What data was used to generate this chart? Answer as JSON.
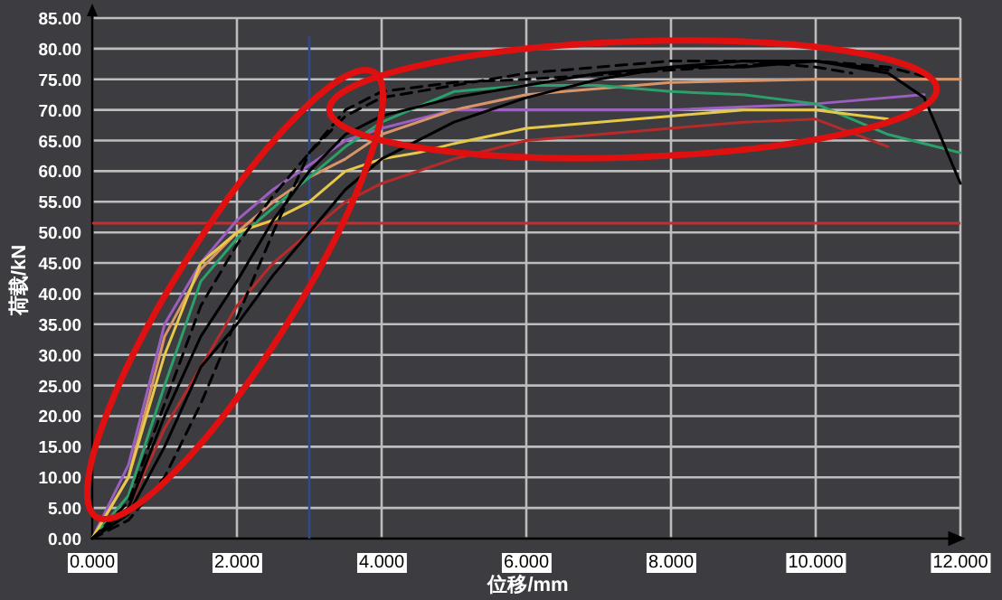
{
  "chart_data": {
    "type": "line",
    "xlabel": "位移/mm",
    "ylabel": "荷载/kN",
    "xlim": [
      0,
      12
    ],
    "ylim": [
      0,
      85
    ],
    "xticks": [
      {
        "value": 0,
        "label": "0.000"
      },
      {
        "value": 2,
        "label": "2.000"
      },
      {
        "value": 4,
        "label": "4.000"
      },
      {
        "value": 6,
        "label": "6.000"
      },
      {
        "value": 8,
        "label": "8.000"
      },
      {
        "value": 10,
        "label": "10.000"
      },
      {
        "value": 12,
        "label": "12.000"
      }
    ],
    "yticks": [
      {
        "value": 0,
        "label": "0.00"
      },
      {
        "value": 5,
        "label": "5.00"
      },
      {
        "value": 10,
        "label": "10.00"
      },
      {
        "value": 15,
        "label": "15.00"
      },
      {
        "value": 20,
        "label": "20.00"
      },
      {
        "value": 25,
        "label": "25.00"
      },
      {
        "value": 30,
        "label": "30.00"
      },
      {
        "value": 35,
        "label": "35.00"
      },
      {
        "value": 40,
        "label": "40.00"
      },
      {
        "value": 45,
        "label": "45.00"
      },
      {
        "value": 50,
        "label": "50.00"
      },
      {
        "value": 55,
        "label": "55.00"
      },
      {
        "value": 60,
        "label": "60.00"
      },
      {
        "value": 65,
        "label": "65.00"
      },
      {
        "value": 70,
        "label": "70.00"
      },
      {
        "value": 75,
        "label": "75.00"
      },
      {
        "value": 80,
        "label": "80.00"
      },
      {
        "value": 85,
        "label": "85.00"
      }
    ],
    "grid": true,
    "marker": "none",
    "ref_lines": [
      {
        "axis": "y",
        "value": 51.5,
        "color": "#c0302e"
      },
      {
        "axis": "x",
        "value": 3,
        "color": "#2f4a8a"
      }
    ],
    "series": [
      {
        "color": "#9a5fc0",
        "line_style": "solid",
        "x": [
          0,
          0.5,
          1,
          1.5,
          2,
          2.5,
          3,
          3.5,
          4,
          5,
          6,
          8,
          10,
          11.5
        ],
        "values": [
          0,
          12,
          35,
          45,
          52,
          57,
          61,
          65,
          67,
          70,
          70,
          70,
          71,
          72.5
        ]
      },
      {
        "color": "#d9956a",
        "line_style": "solid",
        "x": [
          0,
          0.5,
          1,
          1.5,
          2,
          2.5,
          3,
          3.5,
          4,
          5,
          6,
          8,
          10,
          12
        ],
        "values": [
          0,
          10,
          33,
          44,
          50,
          55,
          59,
          62,
          66,
          70,
          72.5,
          74.5,
          75,
          75
        ]
      },
      {
        "color": "#2aa06a",
        "line_style": "solid",
        "x": [
          0,
          0.5,
          1,
          1.5,
          2,
          2.5,
          3,
          3.5,
          4,
          5,
          6,
          7,
          8,
          9,
          10,
          11,
          12
        ],
        "values": [
          0,
          7,
          25,
          42,
          49,
          54,
          59,
          64,
          68,
          73,
          74,
          74,
          73,
          72.5,
          71,
          66,
          63
        ]
      },
      {
        "color": "#e6c84a",
        "line_style": "solid",
        "x": [
          0,
          0.5,
          1,
          1.5,
          2,
          2.5,
          3,
          3.5,
          4,
          4.5,
          5,
          6,
          7,
          8,
          9,
          10,
          11
        ],
        "values": [
          0,
          10,
          30,
          45,
          50,
          52,
          55,
          60,
          62,
          63,
          64.5,
          67,
          68,
          69,
          70,
          70,
          68.5
        ]
      },
      {
        "color": "#b82a2a",
        "line_style": "solid",
        "x": [
          0,
          0.5,
          1,
          1.5,
          2,
          2.5,
          3,
          3.5,
          4,
          5,
          6,
          7,
          8,
          9,
          10,
          11
        ],
        "values": [
          0,
          5,
          18,
          28,
          38,
          45,
          50,
          55,
          58,
          62,
          65,
          66,
          67,
          68,
          68.5,
          64
        ]
      },
      {
        "color": "#000000",
        "line_style": "solid",
        "x": [
          0,
          0.5,
          1,
          1.5,
          2,
          2.5,
          3,
          3.5,
          4,
          5,
          6,
          7,
          8,
          9,
          10,
          11,
          11.5,
          12
        ],
        "values": [
          0,
          4,
          15,
          28,
          35,
          43,
          50,
          57,
          62,
          68,
          72,
          75,
          77,
          78,
          78,
          76,
          72,
          58
        ]
      },
      {
        "color": "#000000",
        "line_style": "solid",
        "x": [
          0,
          0.5,
          1,
          1.5,
          2,
          2.5,
          3,
          3.5,
          4,
          5,
          6,
          7,
          8,
          9,
          10,
          11
        ],
        "values": [
          0,
          5,
          20,
          33,
          42,
          52,
          60,
          66,
          69,
          72,
          74,
          76,
          77,
          77,
          78,
          76.5
        ]
      },
      {
        "color": "#000000",
        "line_style": "dashed",
        "x": [
          0,
          0.5,
          1,
          1.5,
          2,
          2.5,
          3,
          3.5,
          4,
          5,
          6,
          8,
          10,
          11,
          11.5
        ],
        "values": [
          0,
          3,
          10,
          22,
          36,
          50,
          63,
          70,
          73,
          74.5,
          75,
          76.5,
          78,
          77,
          75.5
        ]
      },
      {
        "color": "#000000",
        "line_style": "dashed",
        "x": [
          0,
          0.5,
          1,
          1.5,
          2,
          2.5,
          3,
          3.5,
          4,
          5,
          6,
          7,
          8,
          9,
          10,
          10.5
        ],
        "values": [
          0,
          6,
          22,
          38,
          48,
          56,
          63,
          69,
          72,
          74,
          76,
          77,
          78,
          78,
          77,
          76
        ]
      }
    ]
  }
}
